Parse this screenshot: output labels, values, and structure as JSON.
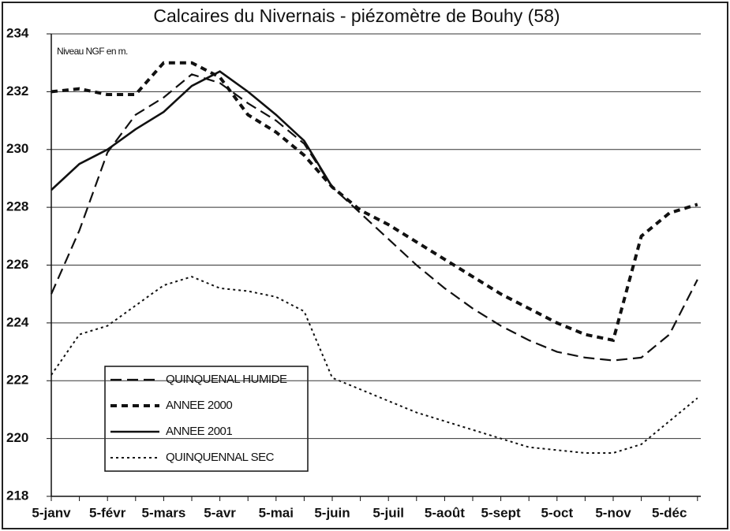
{
  "chart_data": {
    "type": "line",
    "title": "Calcaires du Nivernais - piézomètre de Bouhy (58)",
    "annotation": "Niveau NGF en m.",
    "categories": [
      "5-janv",
      null,
      "5-févr",
      null,
      "5-mars",
      null,
      "5-avr",
      null,
      "5-mai",
      null,
      "5-juin",
      null,
      "5-juil",
      null,
      "5-août",
      null,
      "5-sept",
      null,
      "5-oct",
      null,
      "5-nov",
      null,
      "5-déc",
      null
    ],
    "series": [
      {
        "name": "QUINQUENAL HUMIDE",
        "color": "#111111",
        "dash": "14 7",
        "width": 2.2,
        "values": [
          225.0,
          227.2,
          229.9,
          231.2,
          231.8,
          232.6,
          232.3,
          231.6,
          231.0,
          230.2,
          228.7,
          227.8,
          226.9,
          226.0,
          225.2,
          224.5,
          223.9,
          223.4,
          223.0,
          222.8,
          222.7,
          222.8,
          223.6,
          225.5
        ]
      },
      {
        "name": "ANNEE 2000",
        "color": "#111111",
        "dash": "8 6",
        "width": 4,
        "values": [
          232.0,
          232.1,
          231.9,
          231.9,
          233.0,
          233.0,
          232.5,
          231.2,
          230.6,
          229.8,
          228.7,
          227.9,
          227.4,
          226.8,
          226.2,
          225.6,
          225.0,
          224.5,
          224.0,
          223.6,
          223.4,
          227.0,
          227.8,
          228.1
        ]
      },
      {
        "name": "ANNEE 2001",
        "color": "#111111",
        "dash": "none",
        "width": 2.6,
        "values": [
          228.6,
          229.5,
          230.0,
          230.7,
          231.3,
          232.2,
          232.7,
          232.0,
          231.2,
          230.3,
          228.7,
          null,
          null,
          null,
          null,
          null,
          null,
          null,
          null,
          null,
          null,
          null,
          null,
          null
        ]
      },
      {
        "name": "QUINQUENNAL SEC",
        "color": "#111111",
        "dash": "3 4",
        "width": 2,
        "values": [
          222.2,
          223.6,
          223.9,
          224.6,
          225.3,
          225.6,
          225.2,
          225.1,
          224.9,
          224.4,
          222.1,
          221.7,
          221.3,
          220.9,
          220.6,
          220.3,
          220.0,
          219.7,
          219.6,
          219.5,
          219.5,
          219.8,
          220.6,
          221.4
        ]
      }
    ],
    "ylim": [
      218,
      234
    ],
    "yticks": [
      218,
      220,
      222,
      224,
      226,
      228,
      230,
      232,
      234
    ],
    "grid": true
  }
}
